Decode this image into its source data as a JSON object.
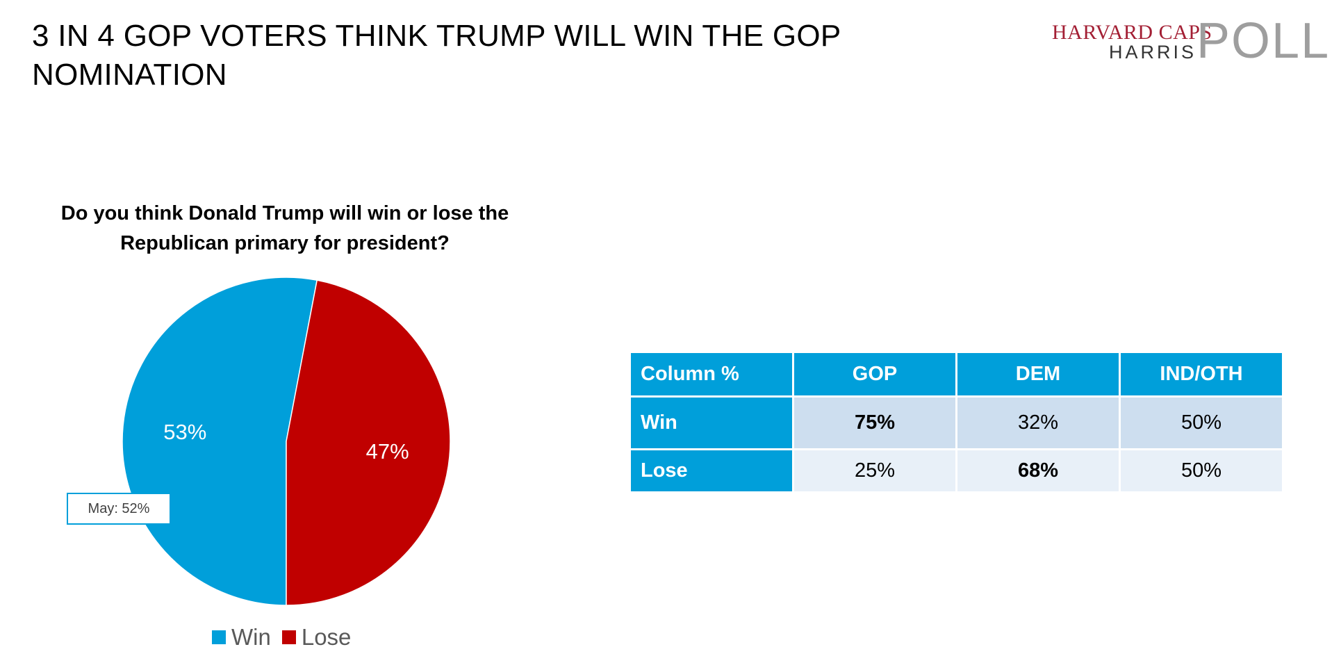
{
  "title": "3 IN 4 GOP VOTERS THINK TRUMP WILL WIN THE GOP NOMINATION",
  "logo": {
    "line1": "HARVARD CAPS",
    "line2": "HARRIS",
    "line3": "POLL"
  },
  "question": "Do you think Donald Trump will win or lose the Republican primary for president?",
  "callout": "May: 52%",
  "colors": {
    "win": "#009fda",
    "lose": "#c00000"
  },
  "chart_data": [
    {
      "type": "pie",
      "title": "Do you think Donald Trump will win or lose the Republican primary for president?",
      "slices": [
        {
          "name": "Win",
          "value": 53,
          "label": "53%",
          "color": "#009fda"
        },
        {
          "name": "Lose",
          "value": 47,
          "label": "47%",
          "color": "#c00000"
        }
      ],
      "legend": {
        "position": "bottom",
        "entries": [
          "Win",
          "Lose"
        ]
      },
      "annotations": [
        "May: 52%"
      ]
    },
    {
      "type": "table",
      "columns": [
        "Column %",
        "GOP",
        "DEM",
        "IND/OTH"
      ],
      "rows": [
        {
          "label": "Win",
          "values": [
            "75%",
            "32%",
            "50%"
          ],
          "bold": [
            true,
            false,
            false
          ]
        },
        {
          "label": "Lose",
          "values": [
            "25%",
            "68%",
            "50%"
          ],
          "bold": [
            false,
            true,
            false
          ]
        }
      ]
    }
  ]
}
